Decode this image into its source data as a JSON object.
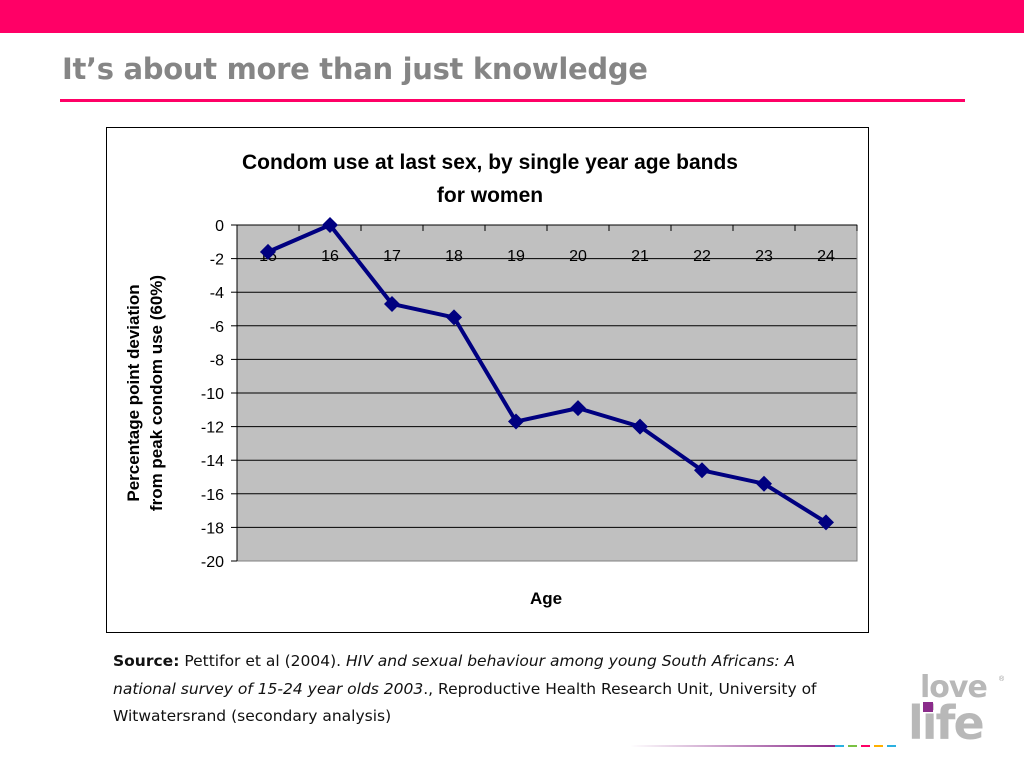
{
  "slide": {
    "title": "It’s about more than just knowledge",
    "accent_color": "#ff0066"
  },
  "chart_data": {
    "type": "line",
    "title": "Condom use at last sex, by single year age bands for women",
    "title_lines": [
      "Condom use at last sex, by single year age bands",
      "for women"
    ],
    "xlabel": "Age",
    "ylabel": "Percentage point deviation from peak condom use (60%)",
    "ylabel_lines": [
      "Percentage point deviation",
      "from peak condom use (60%)"
    ],
    "categories": [
      "15",
      "16",
      "17",
      "18",
      "19",
      "20",
      "21",
      "22",
      "23",
      "24"
    ],
    "series": [
      {
        "values": [
          -1.6,
          0,
          -4.7,
          -5.5,
          -11.7,
          -10.9,
          -12.0,
          -14.6,
          -15.4,
          -17.7
        ]
      }
    ],
    "ylim": [
      -20,
      0
    ],
    "yticks": [
      0,
      -2,
      -4,
      -6,
      -8,
      -10,
      -12,
      -14,
      -16,
      -18,
      -20
    ],
    "grid": true,
    "plot_background": "#c0c0c0",
    "line_color": "#000080"
  },
  "source": {
    "label": "Source:",
    "text_1": " Pettifor et al (2004).  ",
    "italic": "HIV and sexual behaviour among young South Africans:  A national survey of 15-24 year olds 2003",
    "text_2": "., Reproductive Health Research Unit, University of Witwatersrand (secondary analysis)"
  },
  "logo": {
    "top": "love",
    "bottom": "life",
    "registered": "®",
    "accent_color": "#8b2c8b"
  },
  "footer_dashes": [
    "#8b2c8b",
    "#8b2c8b",
    "#2bb0e0",
    "#7ac142",
    "#ff0066",
    "#ffb000",
    "#2bb0e0"
  ]
}
